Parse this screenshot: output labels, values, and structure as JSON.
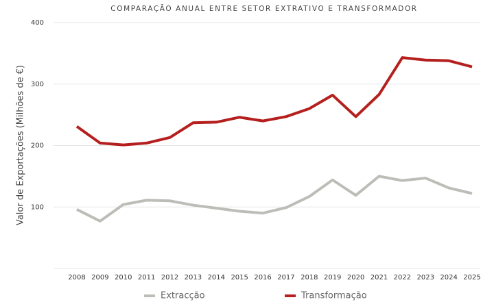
{
  "chart_data": {
    "type": "line",
    "title": "COMPARAÇÃO ANUAL ENTRE SETOR EXTRATIVO E TRANSFORMADOR",
    "y_label": "Valor de Exportações (Milhões de €)",
    "categories": [
      "2008",
      "2009",
      "2010",
      "2011",
      "2012",
      "2013",
      "2014",
      "2015",
      "2016",
      "2017",
      "2018",
      "2019",
      "2020",
      "2021",
      "2022",
      "2023",
      "2024",
      "2025"
    ],
    "series": [
      {
        "name": "Extracção",
        "color": "#bdbdb8",
        "values": [
          96,
          77,
          104,
          111,
          110,
          103,
          98,
          93,
          90,
          99,
          117,
          144,
          119,
          150,
          143,
          147,
          131,
          122
        ]
      },
      {
        "name": "Transformação",
        "color": "#b5201e",
        "values": [
          231,
          204,
          201,
          204,
          213,
          237,
          238,
          246,
          240,
          247,
          260,
          282,
          247,
          283,
          343,
          339,
          338,
          328
        ]
      }
    ],
    "ylim": [
      0,
      400
    ],
    "yticks": [
      100,
      200,
      300,
      400
    ],
    "grid": true
  }
}
